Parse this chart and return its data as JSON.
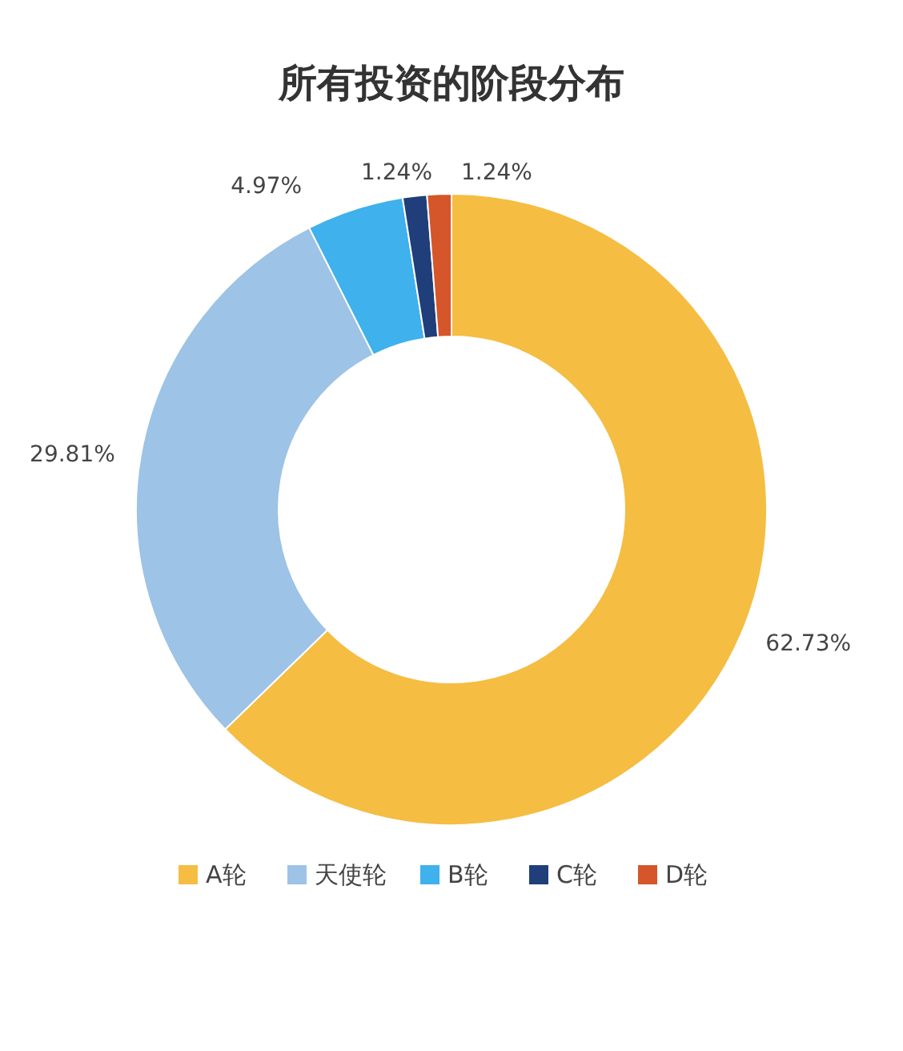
{
  "chart_data": {
    "type": "donut",
    "title": "所有投资的阶段分布",
    "categories": [
      "A轮",
      "天使轮",
      "B轮",
      "C轮",
      "D轮"
    ],
    "values": [
      62.73,
      29.81,
      4.97,
      1.24,
      1.24
    ],
    "colors": [
      "#f5bd42",
      "#9dc3e6",
      "#3fb1ec",
      "#1f3e7a",
      "#d4562a"
    ],
    "value_labels": [
      "62.73%",
      "29.81%",
      "4.97%",
      "1.24%",
      "1.24%"
    ],
    "legend": "bottom"
  }
}
